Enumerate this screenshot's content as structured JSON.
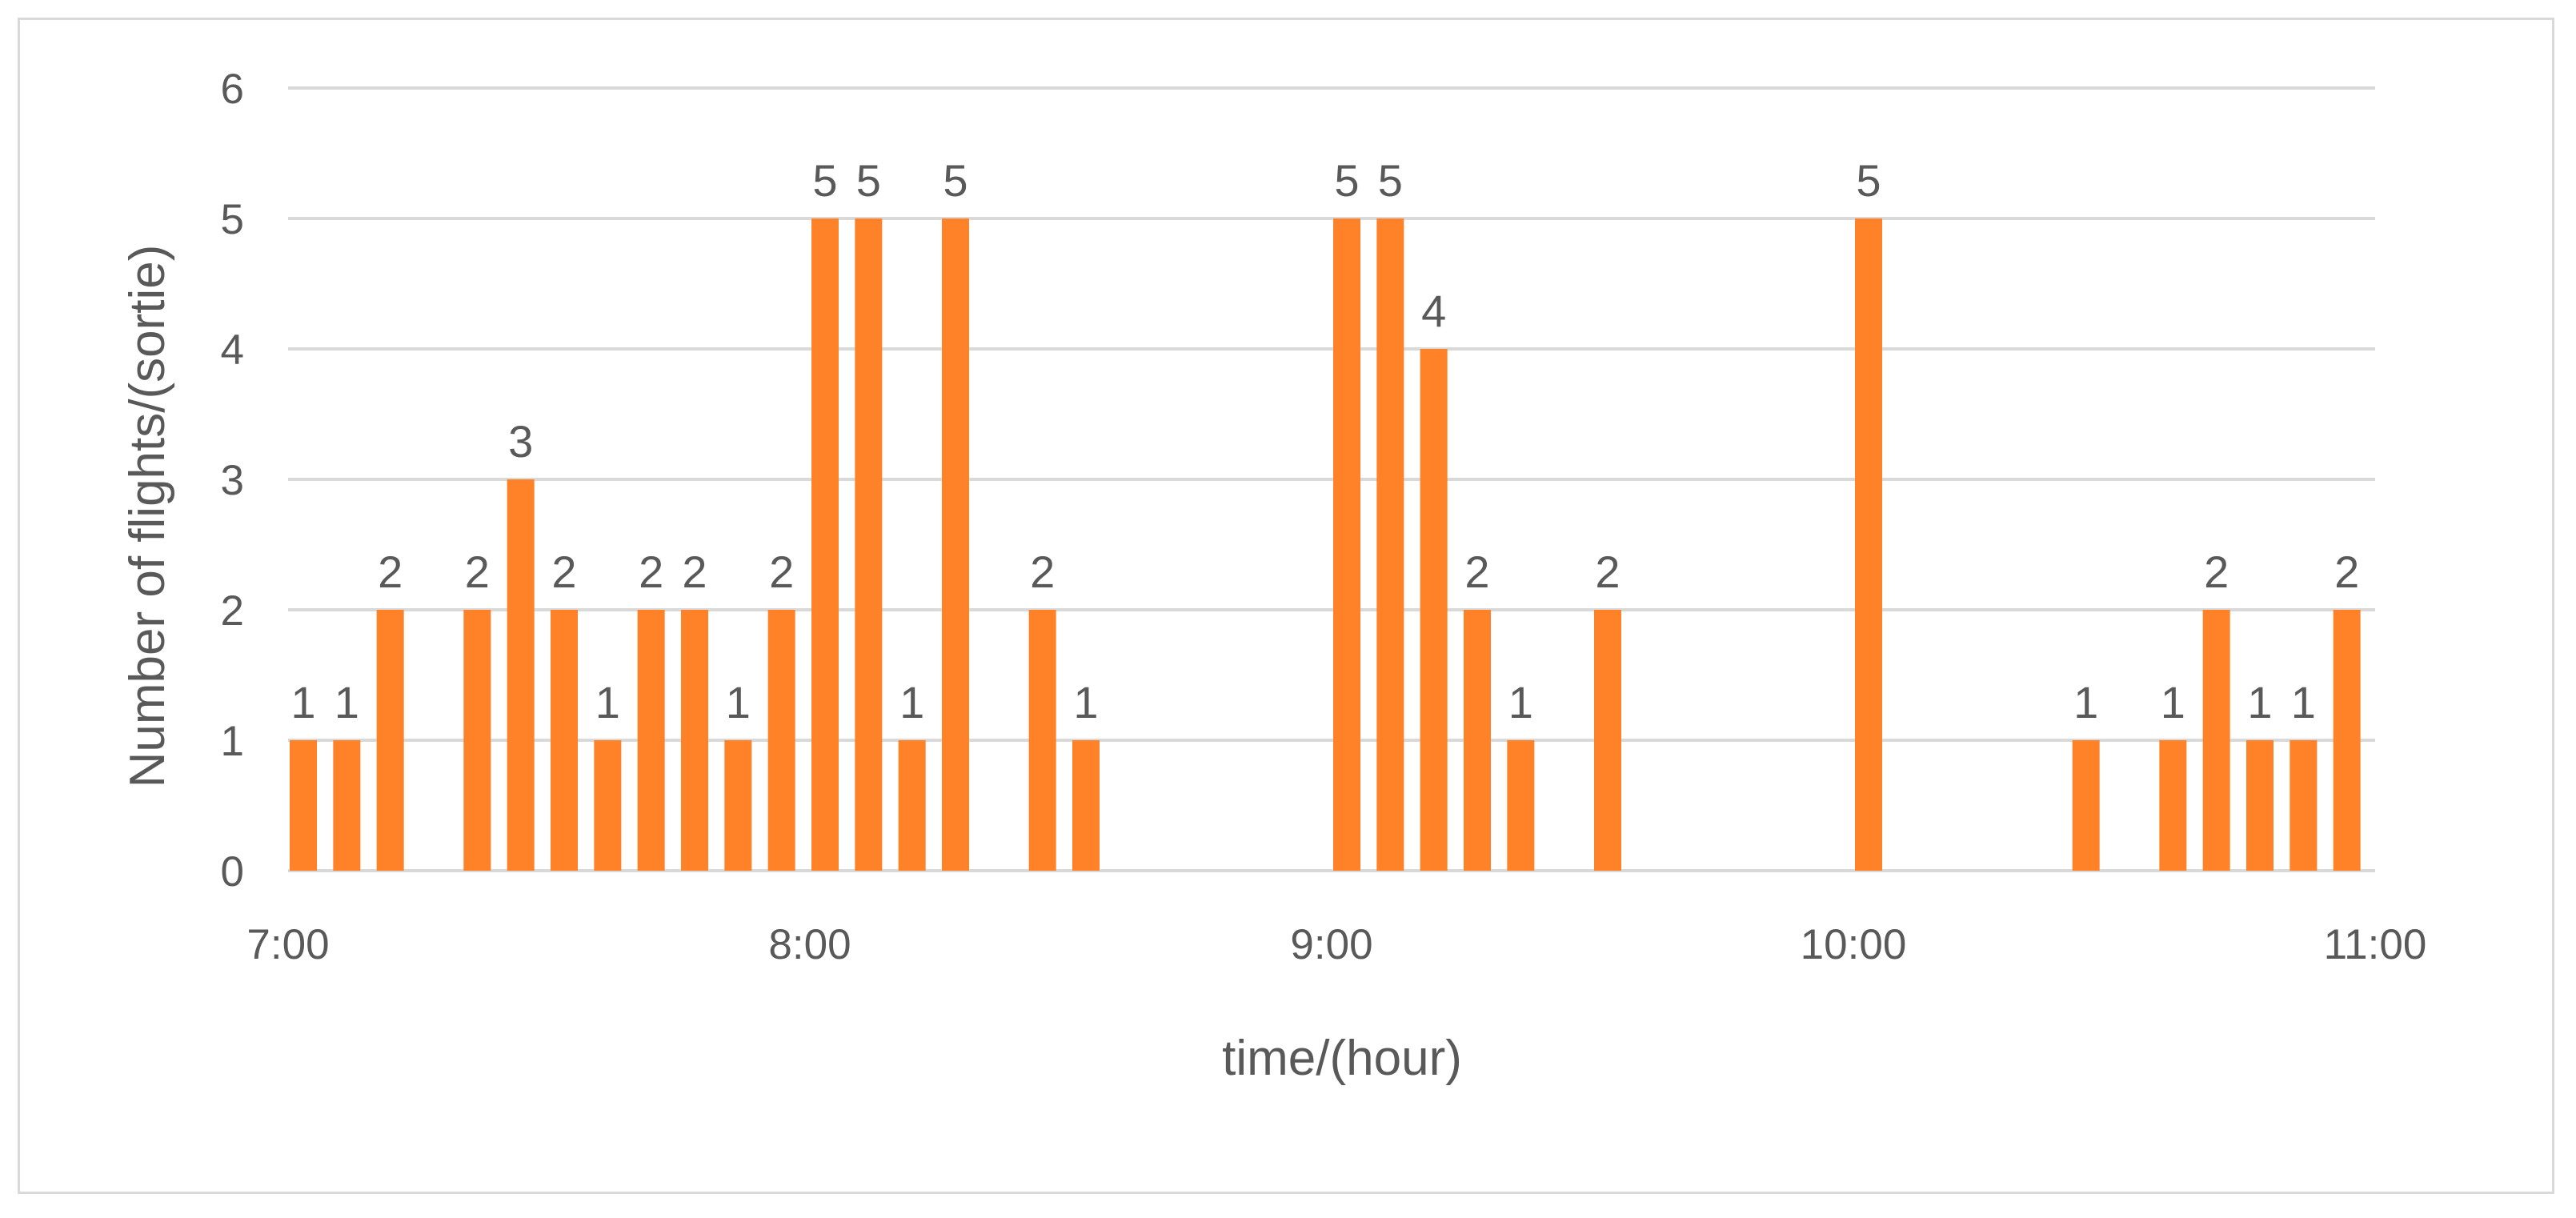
{
  "chart_data": {
    "type": "bar",
    "xlabel": "time/(hour)",
    "ylabel": "Number of flights/(sortie)",
    "ylim": [
      0,
      6
    ],
    "yticks": [
      "0",
      "1",
      "2",
      "3",
      "4",
      "5",
      "6"
    ],
    "xlim": [
      "7:00",
      "11:00"
    ],
    "xticks": [
      "7:00",
      "8:00",
      "9:00",
      "10:00",
      "11:00"
    ],
    "grid": true,
    "legend": "none",
    "bar_color": "#ff8228",
    "grid_color": "#d9d9d9",
    "text_color": "#595959",
    "points": [
      {
        "x": "7:00",
        "y": 1
      },
      {
        "x": "7:05",
        "y": 1
      },
      {
        "x": "7:10",
        "y": 2
      },
      {
        "x": "7:20",
        "y": 2
      },
      {
        "x": "7:25",
        "y": 3
      },
      {
        "x": "7:30",
        "y": 2
      },
      {
        "x": "7:35",
        "y": 1
      },
      {
        "x": "7:40",
        "y": 2
      },
      {
        "x": "7:45",
        "y": 2
      },
      {
        "x": "7:50",
        "y": 1
      },
      {
        "x": "7:55",
        "y": 2
      },
      {
        "x": "8:00",
        "y": 5
      },
      {
        "x": "8:05",
        "y": 5
      },
      {
        "x": "8:10",
        "y": 1
      },
      {
        "x": "8:15",
        "y": 5
      },
      {
        "x": "8:25",
        "y": 2
      },
      {
        "x": "8:30",
        "y": 1
      },
      {
        "x": "9:00",
        "y": 5
      },
      {
        "x": "9:05",
        "y": 5
      },
      {
        "x": "9:10",
        "y": 4
      },
      {
        "x": "9:15",
        "y": 2
      },
      {
        "x": "9:20",
        "y": 1
      },
      {
        "x": "9:30",
        "y": 2
      },
      {
        "x": "10:00",
        "y": 5
      },
      {
        "x": "10:25",
        "y": 1
      },
      {
        "x": "10:35",
        "y": 1
      },
      {
        "x": "10:40",
        "y": 2
      },
      {
        "x": "10:45",
        "y": 1
      },
      {
        "x": "10:50",
        "y": 1
      },
      {
        "x": "10:55",
        "y": 2
      }
    ]
  }
}
